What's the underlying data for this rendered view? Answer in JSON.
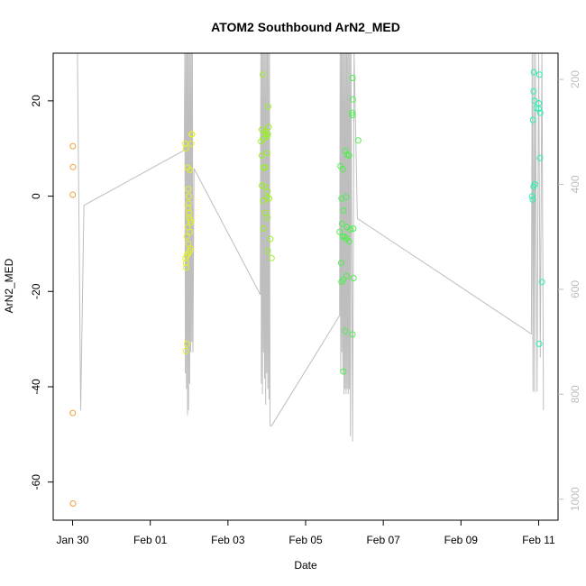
{
  "chart_data": {
    "type": "scatter",
    "title": "ATOM2 Southbound ArN2_MED",
    "xlabel": "Date",
    "ylabel": "ArN2_MED",
    "xlim": [
      "2017-01-29T12:00",
      "2017-02-11T12:00"
    ],
    "ylim": [
      -68,
      30
    ],
    "x_ticks": [
      {
        "label": "Jan 30",
        "date": "2017-01-30T00:00"
      },
      {
        "label": "Feb 01",
        "date": "2017-02-01T00:00"
      },
      {
        "label": "Feb 03",
        "date": "2017-02-03T00:00"
      },
      {
        "label": "Feb 05",
        "date": "2017-02-05T00:00"
      },
      {
        "label": "Feb 07",
        "date": "2017-02-07T00:00"
      },
      {
        "label": "Feb 09",
        "date": "2017-02-09T00:00"
      },
      {
        "label": "Feb 11",
        "date": "2017-02-11T00:00"
      }
    ],
    "y_ticks": [
      20,
      0,
      -20,
      -40,
      -60
    ],
    "y2_ticks": [
      200,
      400,
      600,
      800,
      1000
    ],
    "y2_range": [
      1040,
      150
    ],
    "point_series": [
      {
        "color": "#f0a040",
        "points": [
          [
            "2017-01-30T00:10",
            10.5
          ],
          [
            "2017-01-30T00:15",
            6.1
          ],
          [
            "2017-01-30T00:05",
            0.3
          ],
          [
            "2017-01-30T00:05",
            -45.5
          ],
          [
            "2017-01-30T00:15",
            -64.5
          ]
        ]
      },
      {
        "color": "#e6f028",
        "points": [
          [
            "2017-02-01T21:30",
            11.0
          ],
          [
            "2017-02-01T22:00",
            10.0
          ],
          [
            "2017-02-01T23:00",
            6.0
          ],
          [
            "2017-02-02T00:30",
            5.5
          ],
          [
            "2017-02-02T01:30",
            13.0
          ],
          [
            "2017-02-02T01:50",
            13.0
          ],
          [
            "2017-02-02T01:20",
            11.0
          ],
          [
            "2017-02-01T23:30",
            1.5
          ],
          [
            "2017-02-01T23:50",
            0.0
          ],
          [
            "2017-02-01T23:40",
            -1.5
          ],
          [
            "2017-02-01T23:20",
            -2.5
          ],
          [
            "2017-02-01T23:50",
            -3.5
          ],
          [
            "2017-02-02T00:00",
            -4.5
          ],
          [
            "2017-02-02T00:40",
            -5.0
          ],
          [
            "2017-02-02T01:10",
            -5.5
          ],
          [
            "2017-02-01T23:00",
            -6.5
          ],
          [
            "2017-02-02T00:30",
            -7.5
          ],
          [
            "2017-02-01T22:30",
            -8.5
          ],
          [
            "2017-02-01T23:30",
            -10.0
          ],
          [
            "2017-02-02T00:50",
            -11.0
          ],
          [
            "2017-02-02T00:30",
            -11.5
          ],
          [
            "2017-02-01T23:30",
            -12.0
          ],
          [
            "2017-02-01T22:30",
            -12.5
          ],
          [
            "2017-02-01T21:50",
            -13.0
          ],
          [
            "2017-02-01T22:00",
            -14.0
          ],
          [
            "2017-02-01T22:10",
            -15.0
          ],
          [
            "2017-02-01T22:40",
            -31.0
          ],
          [
            "2017-02-01T22:00",
            -32.5
          ]
        ]
      },
      {
        "color": "#9af028",
        "points": [
          [
            "2017-02-03T21:30",
            25.5
          ],
          [
            "2017-02-04T00:50",
            18.8
          ],
          [
            "2017-02-03T21:00",
            14.0
          ],
          [
            "2017-02-04T01:10",
            14.5
          ],
          [
            "2017-02-03T22:30",
            13.5
          ],
          [
            "2017-02-03T23:30",
            13.0
          ],
          [
            "2017-02-04T00:10",
            12.5
          ],
          [
            "2017-02-04T00:40",
            13.0
          ],
          [
            "2017-02-03T21:40",
            12.0
          ],
          [
            "2017-02-03T20:30",
            11.5
          ],
          [
            "2017-02-04T00:20",
            9.0
          ],
          [
            "2017-02-03T21:00",
            8.5
          ],
          [
            "2017-02-03T22:00",
            6.0
          ],
          [
            "2017-02-03T23:00",
            6.0
          ],
          [
            "2017-02-03T21:00",
            2.2
          ],
          [
            "2017-02-03T23:00",
            2.0
          ],
          [
            "2017-02-04T00:30",
            1.0
          ],
          [
            "2017-02-04T00:10",
            -0.3
          ],
          [
            "2017-02-04T01:30",
            -0.5
          ],
          [
            "2017-02-03T21:40",
            -1.0
          ],
          [
            "2017-02-03T23:00",
            -3.5
          ],
          [
            "2017-02-04T00:30",
            -4.5
          ],
          [
            "2017-02-03T22:00",
            -6.8
          ],
          [
            "2017-02-04T02:10",
            -9.0
          ],
          [
            "2017-02-04T00:40",
            -11.5
          ],
          [
            "2017-02-04T03:00",
            -13.0
          ]
        ]
      },
      {
        "color": "#4cf04c",
        "points": [
          [
            "2017-02-06T05:00",
            24.8
          ],
          [
            "2017-02-06T05:10",
            20.3
          ],
          [
            "2017-02-06T05:00",
            17.0
          ],
          [
            "2017-02-06T04:40",
            17.5
          ],
          [
            "2017-02-06T08:30",
            11.7
          ],
          [
            "2017-02-06T00:30",
            9.5
          ],
          [
            "2017-02-06T01:50",
            8.7
          ],
          [
            "2017-02-06T02:50",
            8.5
          ],
          [
            "2017-02-05T21:30",
            6.3
          ],
          [
            "2017-02-05T23:00",
            5.7
          ],
          [
            "2017-02-06T01:00",
            -0.2
          ],
          [
            "2017-02-05T22:10",
            -0.5
          ],
          [
            "2017-02-05T23:20",
            -3.0
          ],
          [
            "2017-02-05T22:30",
            -5.8
          ],
          [
            "2017-02-06T01:30",
            -6.5
          ],
          [
            "2017-02-06T05:30",
            -6.8
          ],
          [
            "2017-02-06T03:40",
            -7.0
          ],
          [
            "2017-02-05T21:00",
            -7.5
          ],
          [
            "2017-02-05T23:00",
            -8.5
          ],
          [
            "2017-02-06T00:10",
            -8.5
          ],
          [
            "2017-02-06T01:00",
            -9.0
          ],
          [
            "2017-02-06T03:00",
            -9.5
          ],
          [
            "2017-02-05T22:00",
            -14.0
          ],
          [
            "2017-02-06T01:20",
            -16.8
          ],
          [
            "2017-02-06T05:40",
            -17.2
          ],
          [
            "2017-02-05T23:10",
            -17.5
          ],
          [
            "2017-02-05T22:10",
            -18.0
          ],
          [
            "2017-02-06T00:30",
            -28.3
          ],
          [
            "2017-02-06T05:00",
            -29.0
          ],
          [
            "2017-02-05T23:20",
            -36.8
          ]
        ]
      },
      {
        "color": "#28f0b4",
        "points": [
          [
            "2017-02-10T21:00",
            26.0
          ],
          [
            "2017-02-11T00:30",
            25.5
          ],
          [
            "2017-02-10T20:50",
            22.0
          ],
          [
            "2017-02-10T21:30",
            20.0
          ],
          [
            "2017-02-11T00:00",
            19.5
          ],
          [
            "2017-02-10T22:30",
            18.5
          ],
          [
            "2017-02-11T00:00",
            18.3
          ],
          [
            "2017-02-11T01:00",
            17.5
          ],
          [
            "2017-02-10T20:30",
            16.0
          ],
          [
            "2017-02-11T00:50",
            8.0
          ],
          [
            "2017-02-10T21:40",
            2.5
          ],
          [
            "2017-02-10T20:50",
            2.0
          ],
          [
            "2017-02-10T20:00",
            0.0
          ],
          [
            "2017-02-10T20:20",
            -0.7
          ],
          [
            "2017-02-11T02:00",
            -18.0
          ],
          [
            "2017-02-11T00:20",
            -31.0
          ]
        ]
      }
    ],
    "depth_line": {
      "color": "#bebebe",
      "y2_values": [
        [
          "2017-01-30T00:00",
          150
        ],
        [
          "2017-01-30T03:00",
          150
        ],
        [
          "2017-01-30T05:00",
          830
        ],
        [
          "2017-01-30T07:00",
          440
        ],
        [
          "2017-02-01T21:00",
          335
        ],
        [
          "2017-02-01T21:20",
          150
        ],
        [
          "2017-02-01T21:40",
          760
        ],
        [
          "2017-02-01T22:00",
          150
        ],
        [
          "2017-02-01T22:20",
          790
        ],
        [
          "2017-02-01T22:40",
          150
        ],
        [
          "2017-02-01T23:00",
          840
        ],
        [
          "2017-02-01T23:20",
          150
        ],
        [
          "2017-02-01T23:40",
          830
        ],
        [
          "2017-02-02T00:00",
          150
        ],
        [
          "2017-02-02T00:20",
          780
        ],
        [
          "2017-02-02T00:40",
          150
        ],
        [
          "2017-02-02T01:00",
          720
        ],
        [
          "2017-02-02T01:20",
          150
        ],
        [
          "2017-02-02T01:40",
          700
        ],
        [
          "2017-02-02T02:00",
          150
        ],
        [
          "2017-02-02T02:20",
          720
        ],
        [
          "2017-02-02T03:00",
          370
        ],
        [
          "2017-02-03T20:00",
          610
        ],
        [
          "2017-02-03T20:20",
          150
        ],
        [
          "2017-02-03T20:40",
          780
        ],
        [
          "2017-02-03T21:00",
          150
        ],
        [
          "2017-02-03T21:20",
          800
        ],
        [
          "2017-02-03T21:40",
          150
        ],
        [
          "2017-02-03T22:00",
          720
        ],
        [
          "2017-02-03T22:20",
          150
        ],
        [
          "2017-02-03T22:40",
          770
        ],
        [
          "2017-02-03T23:00",
          150
        ],
        [
          "2017-02-03T23:20",
          820
        ],
        [
          "2017-02-03T23:40",
          150
        ],
        [
          "2017-02-04T00:00",
          760
        ],
        [
          "2017-02-04T00:20",
          150
        ],
        [
          "2017-02-04T00:40",
          790
        ],
        [
          "2017-02-04T01:00",
          150
        ],
        [
          "2017-02-04T01:20",
          810
        ],
        [
          "2017-02-04T01:40",
          150
        ],
        [
          "2017-02-04T02:00",
          860
        ],
        [
          "2017-02-04T03:00",
          860
        ],
        [
          "2017-02-05T21:00",
          650
        ],
        [
          "2017-02-05T21:20",
          150
        ],
        [
          "2017-02-05T21:40",
          760
        ],
        [
          "2017-02-05T22:00",
          150
        ],
        [
          "2017-02-05T22:20",
          720
        ],
        [
          "2017-02-05T22:40",
          150
        ],
        [
          "2017-02-05T23:00",
          760
        ],
        [
          "2017-02-05T23:20",
          150
        ],
        [
          "2017-02-05T23:40",
          800
        ],
        [
          "2017-02-06T00:00",
          150
        ],
        [
          "2017-02-06T00:20",
          790
        ],
        [
          "2017-02-06T00:40",
          150
        ],
        [
          "2017-02-06T01:00",
          800
        ],
        [
          "2017-02-06T01:20",
          150
        ],
        [
          "2017-02-06T01:40",
          790
        ],
        [
          "2017-02-06T02:00",
          150
        ],
        [
          "2017-02-06T02:20",
          800
        ],
        [
          "2017-02-06T02:40",
          150
        ],
        [
          "2017-02-06T03:00",
          790
        ],
        [
          "2017-02-06T03:20",
          150
        ],
        [
          "2017-02-06T03:40",
          880
        ],
        [
          "2017-02-06T04:00",
          150
        ],
        [
          "2017-02-06T05:00",
          890
        ],
        [
          "2017-02-06T06:00",
          150
        ],
        [
          "2017-02-06T08:00",
          465
        ],
        [
          "2017-02-10T19:30",
          685
        ],
        [
          "2017-02-10T20:00",
          150
        ],
        [
          "2017-02-10T20:30",
          795
        ],
        [
          "2017-02-10T21:00",
          150
        ],
        [
          "2017-02-10T21:30",
          795
        ],
        [
          "2017-02-10T22:00",
          150
        ],
        [
          "2017-02-10T23:00",
          795
        ],
        [
          "2017-02-11T00:00",
          150
        ],
        [
          "2017-02-11T01:00",
          730
        ],
        [
          "2017-02-11T02:00",
          150
        ],
        [
          "2017-02-11T03:00",
          830
        ]
      ]
    },
    "grid": false,
    "legend": "none"
  }
}
